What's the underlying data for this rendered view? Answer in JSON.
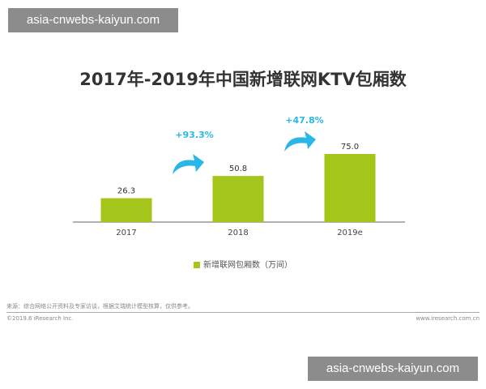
{
  "watermark": "asia-cnwebs-kaiyun.com",
  "chart_data": {
    "type": "bar",
    "title": "2017年-2019年中国新增联网KTV包厢数",
    "categories": [
      "2017",
      "2018",
      "2019e"
    ],
    "series": [
      {
        "name": "新增联网包厢数（万间）",
        "values": [
          26.3,
          50.8,
          75.0
        ],
        "labels": [
          "26.3",
          "50.8",
          "75.0"
        ]
      }
    ],
    "growth_annotations": [
      "+93.3%",
      "+47.8%"
    ],
    "ylim": [
      0,
      75
    ],
    "grid": false,
    "legend": "bottom",
    "colors": {
      "bar": "#a4c61a",
      "arrow": "#29b6e8"
    }
  },
  "footer": {
    "source": "来源：综合网络公开资料及专家访谈，根据艾瑞统计模型核算，仅供参考。",
    "copyright": "©2019.6 iResearch Inc.",
    "site": "www.iresearch.com.cn"
  }
}
